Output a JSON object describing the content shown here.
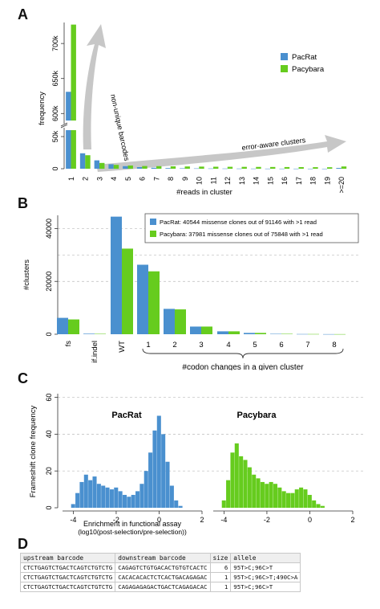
{
  "panels": {
    "a": {
      "letter": "A"
    },
    "b": {
      "letter": "B"
    },
    "c": {
      "letter": "C"
    },
    "d": {
      "letter": "D"
    }
  },
  "colors": {
    "pacrat": "#4a90cf",
    "pacybara": "#66cc1e",
    "arrow": "#bdbdbd"
  },
  "chart_data": [
    {
      "panel": "A",
      "type": "bar",
      "title": "",
      "xlabel": "#reads in cluster",
      "ylabel": "frequency",
      "categories": [
        "1",
        "2",
        "3",
        "4",
        "5",
        "6",
        "7",
        "8",
        "9",
        "10",
        "11",
        "12",
        "13",
        "14",
        "15",
        "16",
        "17",
        "18",
        "19",
        ">=20"
      ],
      "series": [
        {
          "name": "PacRat",
          "values": [
            631000,
            24000,
            13000,
            7000,
            4000,
            2500,
            1500,
            1000,
            700,
            500,
            400,
            300,
            250,
            200,
            150,
            120,
            100,
            80,
            60,
            1200
          ]
        },
        {
          "name": "Pacybara",
          "values": [
            727000,
            21000,
            9000,
            6000,
            5000,
            4200,
            4000,
            3700,
            3500,
            3300,
            3100,
            3000,
            2900,
            2800,
            2700,
            2600,
            2500,
            2400,
            2300,
            3500
          ]
        }
      ],
      "y_axis_break": true,
      "y_lower_ticks": [
        "0",
        "50k"
      ],
      "y_upper_ticks": [
        "600k",
        "650k",
        "700k"
      ],
      "ylim_lower": [
        0,
        60000
      ],
      "ylim_upper": [
        590000,
        730000
      ],
      "legend_position": "top-right",
      "annotations": [
        "non-unique barcodes",
        "error-aware clusters"
      ]
    },
    {
      "panel": "B",
      "type": "bar",
      "title": "",
      "xlabel": "#codon changes in a given cluster",
      "ylabel": "#clusters",
      "categories": [
        "fs",
        "if.indel",
        "WT",
        "1",
        "2",
        "3",
        "4",
        "5",
        "6",
        "7",
        "8"
      ],
      "series": [
        {
          "name": "PacRat",
          "values": [
            6200,
            200,
            44500,
            26300,
            9600,
            2900,
            1100,
            500,
            150,
            80,
            40
          ]
        },
        {
          "name": "Pacybara",
          "values": [
            5600,
            150,
            32400,
            23800,
            9400,
            2900,
            1100,
            500,
            150,
            80,
            40
          ]
        }
      ],
      "yticks": [
        0,
        20000,
        40000
      ],
      "ylim": [
        0,
        45000
      ],
      "grid": "horizontal dashed",
      "legend_position": "top-right",
      "legend_entries": [
        "PacRat: 40544 missense clones out of 91146 with >1 read",
        "Pacybara: 37981 missense clones out of 75848 with >1 read"
      ]
    },
    {
      "panel": "C",
      "type": "bar",
      "title": "",
      "xlabel": "Enrichment in functional assay",
      "xlabel2": "(log10(post-selection/pre-selection))",
      "ylabel": "Frameshift clone frequency",
      "subplots": [
        {
          "label": "PacRat",
          "xlim": [
            -4.5,
            2
          ],
          "xticks": [
            -4,
            -2,
            0,
            2
          ],
          "x": [
            -4.0,
            -3.8,
            -3.6,
            -3.4,
            -3.2,
            -3.0,
            -2.8,
            -2.6,
            -2.4,
            -2.2,
            -2.0,
            -1.8,
            -1.6,
            -1.4,
            -1.2,
            -1.0,
            -0.8,
            -0.6,
            -0.4,
            -0.2,
            0.0,
            0.2,
            0.4,
            0.6,
            0.8,
            1.0
          ],
          "values": [
            2,
            8,
            14,
            18,
            15,
            17,
            13,
            12,
            11,
            10,
            11,
            9,
            7,
            6,
            7,
            9,
            13,
            20,
            30,
            42,
            50,
            40,
            25,
            12,
            4,
            1
          ]
        },
        {
          "label": "Pacybara",
          "xlim": [
            -4.5,
            2
          ],
          "xticks": [
            -4,
            -2,
            0,
            2
          ],
          "x": [
            -4.0,
            -3.8,
            -3.6,
            -3.4,
            -3.2,
            -3.0,
            -2.8,
            -2.6,
            -2.4,
            -2.2,
            -2.0,
            -1.8,
            -1.6,
            -1.4,
            -1.2,
            -1.0,
            -0.8,
            -0.6,
            -0.4,
            -0.2,
            0.0,
            0.2,
            0.4,
            0.6,
            0.8,
            1.0
          ],
          "values": [
            4,
            15,
            30,
            35,
            28,
            26,
            22,
            18,
            16,
            14,
            13,
            14,
            13,
            11,
            9,
            8,
            8,
            10,
            11,
            10,
            7,
            4,
            2,
            1,
            0,
            0
          ]
        }
      ],
      "yticks": [
        0,
        20,
        40,
        60
      ],
      "ylim": [
        0,
        62
      ],
      "grid": "horizontal dashed"
    }
  ],
  "table": {
    "headers": [
      "upstream barcode",
      "downstream barcode",
      "size",
      "allele"
    ],
    "rows": [
      [
        "CTCTGAGTCTGACTCAGTCTGTCTG",
        "CAGAGTCTGTGACACTGTGTCACTC",
        "6",
        "95T>C;96C>T"
      ],
      [
        "CTCTGAGTCTGACTCAGTCTGTCTG",
        "CACACACACTCTCACTGACAGAGAC",
        "1",
        "95T>C;96C>T;490C>A"
      ],
      [
        "CTCTGAGTCTGACTCAGTCTGTCTG",
        "CAGAGAGAGACTGACTCAGAGACAC",
        "1",
        "95T>C;96C>T"
      ]
    ]
  }
}
